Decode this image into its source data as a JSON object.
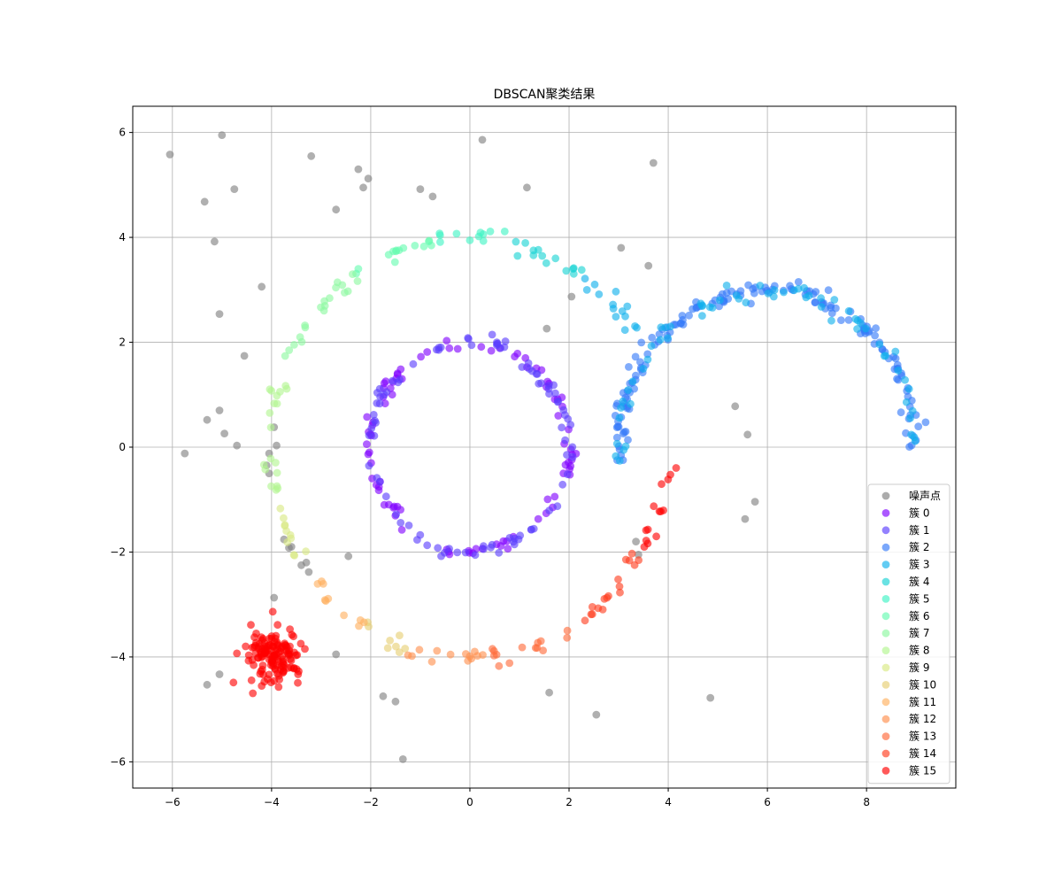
{
  "chart_data": {
    "type": "scatter",
    "title": "DBSCAN聚类结果",
    "xlabel": "",
    "ylabel": "",
    "xlim": [
      -6.8,
      9.8
    ],
    "ylim": [
      -6.5,
      6.5
    ],
    "xticks": [
      -6,
      -4,
      -2,
      0,
      2,
      4,
      6,
      8
    ],
    "yticks": [
      -6,
      -4,
      -2,
      0,
      2,
      4,
      6
    ],
    "xtick_labels": [
      "−6",
      "−4",
      "−2",
      "0",
      "2",
      "4",
      "6",
      "8"
    ],
    "ytick_labels": [
      "−6",
      "−4",
      "−2",
      "0",
      "2",
      "4",
      "6"
    ],
    "grid": true,
    "legend_position": "lower right",
    "series": [
      {
        "name": "噪声点",
        "color": "#808080",
        "points": [
          [
            -6.05,
            5.58
          ],
          [
            -5.0,
            5.95
          ],
          [
            -3.2,
            5.55
          ],
          [
            -2.25,
            5.3
          ],
          [
            -2.05,
            5.12
          ],
          [
            -2.15,
            4.95
          ],
          [
            -1.0,
            4.92
          ],
          [
            -0.75,
            4.78
          ],
          [
            0.25,
            5.86
          ],
          [
            1.15,
            4.95
          ],
          [
            3.7,
            5.42
          ],
          [
            -5.35,
            4.68
          ],
          [
            -4.75,
            4.92
          ],
          [
            -2.7,
            4.53
          ],
          [
            -5.15,
            3.92
          ],
          [
            -4.2,
            3.06
          ],
          [
            -5.05,
            2.54
          ],
          [
            -4.55,
            1.74
          ],
          [
            3.05,
            3.8
          ],
          [
            3.6,
            3.46
          ],
          [
            2.05,
            2.87
          ],
          [
            1.55,
            2.26
          ],
          [
            -5.3,
            0.52
          ],
          [
            -5.05,
            0.7
          ],
          [
            -4.95,
            0.26
          ],
          [
            -4.7,
            0.03
          ],
          [
            -5.75,
            -0.12
          ],
          [
            -3.95,
            0.38
          ],
          [
            -4.05,
            -0.12
          ],
          [
            -3.9,
            0.03
          ],
          [
            -4.1,
            -0.35
          ],
          [
            -4.05,
            -0.5
          ],
          [
            -3.75,
            -1.76
          ],
          [
            -3.6,
            -1.9
          ],
          [
            -3.65,
            -1.92
          ],
          [
            -3.4,
            -2.25
          ],
          [
            -3.3,
            -2.2
          ],
          [
            -3.25,
            -2.38
          ],
          [
            -2.45,
            -2.08
          ],
          [
            3.35,
            -1.8
          ],
          [
            3.4,
            -2.05
          ],
          [
            -3.95,
            -2.87
          ],
          [
            -2.7,
            -3.95
          ],
          [
            -5.3,
            -4.53
          ],
          [
            -5.05,
            -4.33
          ],
          [
            -1.75,
            -4.75
          ],
          [
            -1.5,
            -4.85
          ],
          [
            -1.35,
            -5.95
          ],
          [
            1.6,
            -4.68
          ],
          [
            2.55,
            -5.1
          ],
          [
            4.85,
            -4.78
          ],
          [
            5.35,
            0.78
          ],
          [
            5.6,
            0.24
          ],
          [
            5.75,
            -1.04
          ],
          [
            5.55,
            -1.37
          ]
        ]
      },
      {
        "name": "簇 0",
        "color": "#7f00ff",
        "points": []
      },
      {
        "name": "簇 1",
        "color": "#5a3dfd",
        "points": []
      },
      {
        "name": "簇 2",
        "color": "#3479f9",
        "points": []
      },
      {
        "name": "簇 3",
        "color": "#0fb0ec",
        "points": []
      },
      {
        "name": "簇 4",
        "color": "#18d3d4",
        "points": []
      },
      {
        "name": "簇 5",
        "color": "#3ff3c4",
        "points": []
      },
      {
        "name": "簇 6",
        "color": "#66fbb0",
        "points": []
      },
      {
        "name": "簇 7",
        "color": "#8cf8a0",
        "points": []
      },
      {
        "name": "簇 8",
        "color": "#b2f68f",
        "points": []
      },
      {
        "name": "簇 9",
        "color": "#d8e982",
        "points": []
      },
      {
        "name": "簇 10",
        "color": "#e6ce72",
        "points": []
      },
      {
        "name": "簇 11",
        "color": "#ffb060",
        "points": []
      },
      {
        "name": "簇 12",
        "color": "#ff8f4d",
        "points": []
      },
      {
        "name": "簇 13",
        "color": "#ff6a3a",
        "points": []
      },
      {
        "name": "簇 14",
        "color": "#ff3d1f",
        "points": []
      },
      {
        "name": "簇 15",
        "color": "#ff0000",
        "points": []
      }
    ],
    "cluster_groups": {
      "inner_ring": {
        "label": "簇 0 / 簇 1",
        "center": [
          0,
          0
        ],
        "radius": 2.0,
        "n": 180,
        "palette": [
          "#7f00ff",
          "#5a3dfd"
        ]
      },
      "outer_ring": {
        "center": [
          0,
          0
        ],
        "radius": 4.0,
        "arc_from_deg": 210,
        "arc_to_deg": 360,
        "n": 170
      },
      "half_moon": {
        "center": [
          6,
          0
        ],
        "radius": 3.0,
        "arc_from_deg": 0,
        "arc_to_deg": 185,
        "n": 220,
        "palette": [
          "#3479f9",
          "#0fb0ec"
        ]
      },
      "blob": {
        "center": [
          -4.0,
          -4.0
        ],
        "spread": 0.28,
        "n": 140,
        "color": "#ff0000"
      }
    }
  }
}
